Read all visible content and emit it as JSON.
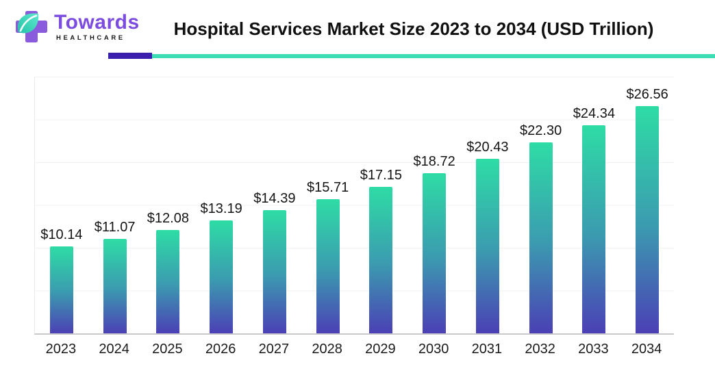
{
  "header": {
    "logo": {
      "brand": "Towards",
      "sub": "HEALTHCARE"
    },
    "title": "Hospital Services Market Size 2023 to 2034 (USD Trillion)"
  },
  "chart_data": {
    "type": "bar",
    "title": "Hospital Services Market Size 2023 to 2034 (USD Trillion)",
    "unit": "USD Trillion",
    "categories": [
      "2023",
      "2024",
      "2025",
      "2026",
      "2027",
      "2028",
      "2029",
      "2030",
      "2031",
      "2032",
      "2033",
      "2034"
    ],
    "values": [
      10.14,
      11.07,
      12.08,
      13.19,
      14.39,
      15.71,
      17.15,
      18.72,
      20.43,
      22.3,
      24.34,
      26.56
    ],
    "value_labels": [
      "$10.14",
      "$11.07",
      "$12.08",
      "$13.19",
      "$14.39",
      "$15.71",
      "$17.15",
      "$18.72",
      "$20.43",
      "$22.30",
      "$24.34",
      "$26.56"
    ],
    "xlabel": "",
    "ylabel": "",
    "ylim": [
      0,
      30
    ],
    "grid": "horizontal, every 5 units, no y-axis tick labels",
    "legend": "none",
    "bar_gradient": {
      "top": "#2edca5",
      "mid": "#3b9cb0",
      "bottom": "#4b40b5"
    }
  },
  "colors": {
    "brand_purple": "#7c4ce0",
    "logo_cross_purple": "#8a5bdd",
    "logo_leaf_teal_light": "#5fe9cf",
    "logo_leaf_teal_dark": "#23c2a6",
    "divider_purple": "#3a1fae",
    "divider_teal": "#3edcb4",
    "gridline": "#f1f1f4",
    "axis_baseline": "#c9c9cd",
    "text": "#141414"
  }
}
